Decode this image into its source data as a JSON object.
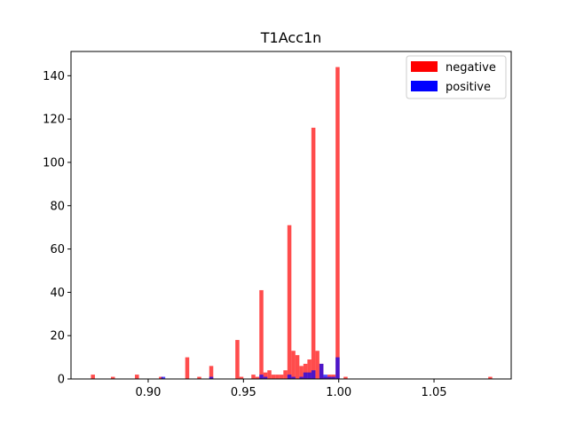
{
  "chart_data": {
    "type": "bar",
    "title": "T1Acc1n",
    "xlabel": "",
    "ylabel": "",
    "xlim": [
      0.8595,
      1.0905
    ],
    "ylim": [
      0,
      151.2
    ],
    "xticks": [
      0.9,
      0.95,
      1.0,
      1.05
    ],
    "xtick_labels": [
      "0.90",
      "0.95",
      "1.00",
      "1.05"
    ],
    "yticks": [
      0,
      20,
      40,
      60,
      80,
      100,
      120,
      140
    ],
    "ytick_labels": [
      "0",
      "20",
      "40",
      "60",
      "80",
      "100",
      "120",
      "140"
    ],
    "grid": false,
    "legend_position": "top-right",
    "bin_range": [
      0.87,
      1.08
    ],
    "bin_count": 100,
    "series": [
      {
        "name": "negative",
        "color": "#ff0000",
        "opacity": 0.7,
        "bins": [
          {
            "x": 0.871,
            "count": 2
          },
          {
            "x": 0.8815,
            "count": 1
          },
          {
            "x": 0.8941,
            "count": 2
          },
          {
            "x": 0.9067,
            "count": 1
          },
          {
            "x": 0.9205,
            "count": 10
          },
          {
            "x": 0.9268,
            "count": 1
          },
          {
            "x": 0.9331,
            "count": 6
          },
          {
            "x": 0.9468,
            "count": 18
          },
          {
            "x": 0.9489,
            "count": 1
          },
          {
            "x": 0.9552,
            "count": 2
          },
          {
            "x": 0.9573,
            "count": 1
          },
          {
            "x": 0.9594,
            "count": 41
          },
          {
            "x": 0.9615,
            "count": 3
          },
          {
            "x": 0.9636,
            "count": 4
          },
          {
            "x": 0.9657,
            "count": 2
          },
          {
            "x": 0.9678,
            "count": 2
          },
          {
            "x": 0.9699,
            "count": 2
          },
          {
            "x": 0.972,
            "count": 4
          },
          {
            "x": 0.9741,
            "count": 71
          },
          {
            "x": 0.9762,
            "count": 13
          },
          {
            "x": 0.9783,
            "count": 11
          },
          {
            "x": 0.9804,
            "count": 6
          },
          {
            "x": 0.9825,
            "count": 7
          },
          {
            "x": 0.9846,
            "count": 9
          },
          {
            "x": 0.9867,
            "count": 116
          },
          {
            "x": 0.9888,
            "count": 13
          },
          {
            "x": 0.9909,
            "count": 7
          },
          {
            "x": 0.993,
            "count": 1
          },
          {
            "x": 0.9951,
            "count": 2
          },
          {
            "x": 0.9972,
            "count": 2
          },
          {
            "x": 0.9994,
            "count": 144
          },
          {
            "x": 1.0036,
            "count": 1
          },
          {
            "x": 1.0795,
            "count": 1
          }
        ]
      },
      {
        "name": "positive",
        "color": "#0000ff",
        "opacity": 0.7,
        "bins": [
          {
            "x": 0.9079,
            "count": 1
          },
          {
            "x": 0.9331,
            "count": 1
          },
          {
            "x": 0.9594,
            "count": 2
          },
          {
            "x": 0.9615,
            "count": 1
          },
          {
            "x": 0.9741,
            "count": 2
          },
          {
            "x": 0.9762,
            "count": 1
          },
          {
            "x": 0.9804,
            "count": 1
          },
          {
            "x": 0.9825,
            "count": 3
          },
          {
            "x": 0.9846,
            "count": 3
          },
          {
            "x": 0.9867,
            "count": 4
          },
          {
            "x": 0.9909,
            "count": 7
          },
          {
            "x": 0.993,
            "count": 2
          },
          {
            "x": 0.9951,
            "count": 1
          },
          {
            "x": 0.9972,
            "count": 1
          },
          {
            "x": 0.9994,
            "count": 10
          }
        ]
      }
    ]
  }
}
